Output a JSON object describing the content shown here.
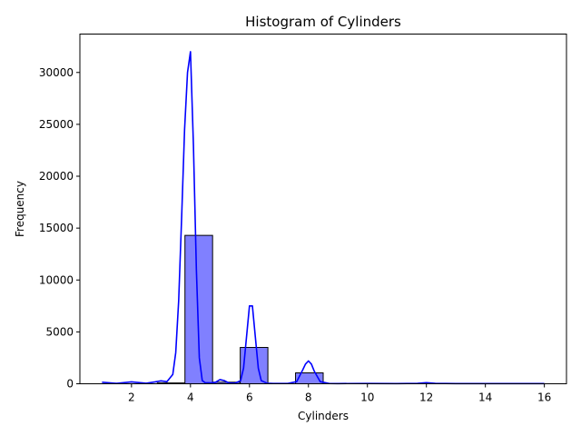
{
  "chart_data": {
    "type": "histogram",
    "title": "Histogram of Cylinders",
    "xlabel": "Cylinders",
    "ylabel": "Frequency",
    "xlim": [
      0.25,
      16.75
    ],
    "ylim": [
      0,
      33700
    ],
    "x_ticks": [
      2,
      4,
      6,
      8,
      10,
      12,
      14,
      16
    ],
    "y_ticks": [
      0,
      5000,
      10000,
      15000,
      20000,
      25000,
      30000
    ],
    "grid": false,
    "legend": "none",
    "bar_color": "#8080ff",
    "bar_edge_color": "#000000",
    "kde_color": "#0000ff",
    "bins": [
      {
        "x0": 1.0,
        "x1": 1.9375,
        "count": 0
      },
      {
        "x0": 1.9375,
        "x1": 2.875,
        "count": 0
      },
      {
        "x0": 2.875,
        "x1": 3.8125,
        "count": 80
      },
      {
        "x0": 3.8125,
        "x1": 4.75,
        "count": 14300
      },
      {
        "x0": 4.75,
        "x1": 5.6875,
        "count": 150
      },
      {
        "x0": 5.6875,
        "x1": 6.625,
        "count": 3500
      },
      {
        "x0": 6.625,
        "x1": 7.5625,
        "count": 0
      },
      {
        "x0": 7.5625,
        "x1": 8.5,
        "count": 1050
      },
      {
        "x0": 8.5,
        "x1": 9.4375,
        "count": 0
      },
      {
        "x0": 9.4375,
        "x1": 10.375,
        "count": 10
      },
      {
        "x0": 10.375,
        "x1": 11.3125,
        "count": 0
      },
      {
        "x0": 11.3125,
        "x1": 12.25,
        "count": 20
      },
      {
        "x0": 12.25,
        "x1": 13.1875,
        "count": 0
      },
      {
        "x0": 13.1875,
        "x1": 14.125,
        "count": 0
      },
      {
        "x0": 14.125,
        "x1": 15.0625,
        "count": 0
      },
      {
        "x0": 15.0625,
        "x1": 16.0,
        "count": 0
      }
    ],
    "kde": {
      "x": [
        1.0,
        1.5,
        2.0,
        2.5,
        2.8,
        3.0,
        3.2,
        3.4,
        3.5,
        3.6,
        3.7,
        3.8,
        3.9,
        4.0,
        4.1,
        4.2,
        4.3,
        4.4,
        4.5,
        4.7,
        4.85,
        5.0,
        5.15,
        5.3,
        5.5,
        5.7,
        5.8,
        5.9,
        6.0,
        6.1,
        6.2,
        6.3,
        6.4,
        6.6,
        6.8,
        7.0,
        7.3,
        7.6,
        7.8,
        7.9,
        8.0,
        8.1,
        8.2,
        8.4,
        8.7,
        9.0,
        10.0,
        11.0,
        11.7,
        12.0,
        12.3,
        13.0,
        14.0,
        15.0,
        16.0
      ],
      "y": [
        150,
        40,
        180,
        50,
        180,
        280,
        200,
        900,
        3000,
        8000,
        16000,
        24500,
        30000,
        32000,
        23000,
        11000,
        2500,
        300,
        100,
        80,
        150,
        400,
        300,
        80,
        50,
        300,
        1500,
        4500,
        7500,
        7500,
        4500,
        1500,
        300,
        50,
        30,
        30,
        30,
        200,
        1300,
        1900,
        2200,
        1900,
        1200,
        200,
        30,
        20,
        30,
        20,
        40,
        100,
        40,
        20,
        20,
        20,
        20
      ]
    }
  }
}
